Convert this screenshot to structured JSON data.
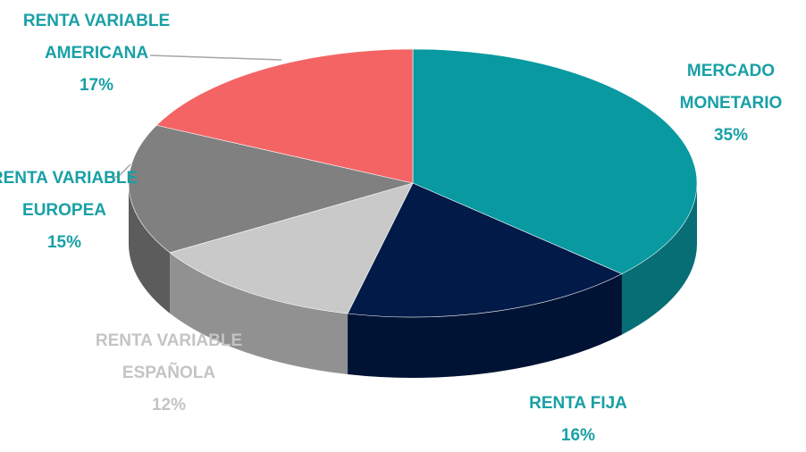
{
  "chart_data": {
    "type": "pie",
    "categories": [
      "MERCADO MONETARIO",
      "RENTA FIJA",
      "RENTA VARIABLE ESPAÑOLA",
      "RENTA VARIABLE EUROPEA",
      "RENTA VARIABLE AMERICANA"
    ],
    "values": [
      35,
      16,
      12,
      15,
      17
    ],
    "value_labels": [
      "35%",
      "16%",
      "12%",
      "15%",
      "17%"
    ],
    "colors": [
      "#0899a1",
      "#021a48",
      "#c9c9c9",
      "#808080",
      "#f46464"
    ]
  }
}
